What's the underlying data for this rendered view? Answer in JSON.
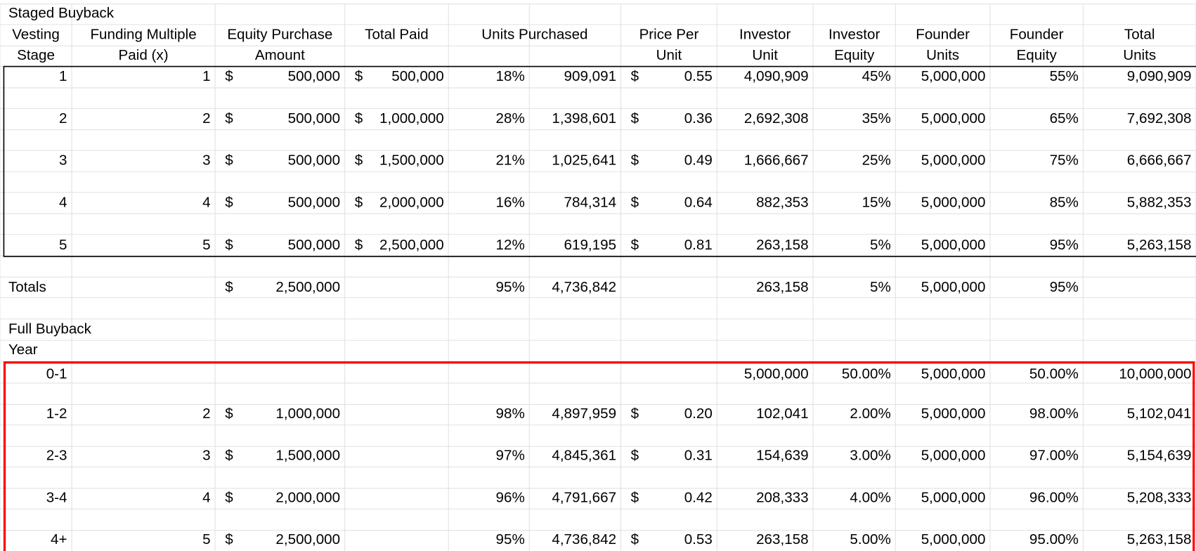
{
  "staged": {
    "title": "Staged Buyback",
    "headers": [
      {
        "top": "Vesting",
        "bottom": "Stage"
      },
      {
        "top": "Funding Multiple",
        "bottom": "Paid (x)"
      },
      {
        "top": "Equity Purchase",
        "bottom": "Amount"
      },
      {
        "top": "Total Paid"
      },
      {
        "top": "Units Purchased"
      },
      {
        "top": "Price Per",
        "bottom": "Unit"
      },
      {
        "top": "Investor",
        "bottom": "Unit"
      },
      {
        "top": "Investor",
        "bottom": "Equity"
      },
      {
        "top": "Founder",
        "bottom": "Units"
      },
      {
        "top": "Founder",
        "bottom": "Equity"
      },
      {
        "top": "Total",
        "bottom": "Units",
        "top_color": "#ff0000"
      }
    ],
    "rows": [
      {
        "stage": "1",
        "multiple": "1",
        "amount_symbol": "$",
        "amount": "500,000",
        "total_symbol": "$",
        "total": "500,000",
        "pct": "18%",
        "units": "909,091",
        "price_symbol": "$",
        "price": "0.55",
        "investor_units": "4,090,909",
        "investor_equity": "45%",
        "founder_units": "5,000,000",
        "founder_equity": "55%",
        "total_units": "9,090,909"
      },
      {
        "stage": "2",
        "multiple": "2",
        "amount_symbol": "$",
        "amount": "500,000",
        "total_symbol": "$",
        "total": "1,000,000",
        "pct": "28%",
        "units": "1,398,601",
        "price_symbol": "$",
        "price": "0.36",
        "investor_units": "2,692,308",
        "investor_equity": "35%",
        "founder_units": "5,000,000",
        "founder_equity": "65%",
        "total_units": "7,692,308"
      },
      {
        "stage": "3",
        "multiple": "3",
        "amount_symbol": "$",
        "amount": "500,000",
        "total_symbol": "$",
        "total": "1,500,000",
        "pct": "21%",
        "units": "1,025,641",
        "price_symbol": "$",
        "price": "0.49",
        "investor_units": "1,666,667",
        "investor_equity": "25%",
        "founder_units": "5,000,000",
        "founder_equity": "75%",
        "total_units": "6,666,667"
      },
      {
        "stage": "4",
        "multiple": "4",
        "amount_symbol": "$",
        "amount": "500,000",
        "total_symbol": "$",
        "total": "2,000,000",
        "pct": "16%",
        "units": "784,314",
        "price_symbol": "$",
        "price": "0.64",
        "investor_units": "882,353",
        "investor_equity": "15%",
        "founder_units": "5,000,000",
        "founder_equity": "85%",
        "total_units": "5,882,353"
      },
      {
        "stage": "5",
        "multiple": "5",
        "amount_symbol": "$",
        "amount": "500,000",
        "total_symbol": "$",
        "total": "2,500,000",
        "pct": "12%",
        "units": "619,195",
        "price_symbol": "$",
        "price": "0.81",
        "investor_units": "263,158",
        "investor_equity": "5%",
        "founder_units": "5,000,000",
        "founder_equity": "95%",
        "total_units": "5,263,158"
      }
    ],
    "totals": {
      "label": "Totals",
      "amount_symbol": "$",
      "amount": "2,500,000",
      "pct": "95%",
      "units": "4,736,842",
      "investor_units": "263,158",
      "investor_equity": "5%",
      "founder_units": "5,000,000",
      "founder_equity": "95%",
      "color": "#ff0000"
    }
  },
  "full": {
    "title": "Full Buyback",
    "header": "Year",
    "rows": [
      {
        "stage": "0-1",
        "investor_units": "5,000,000",
        "investor_equity": "50.00%",
        "founder_units": "5,000,000",
        "founder_equity": "50.00%",
        "total_units": "10,000,000"
      },
      {
        "stage": "1-2",
        "multiple": "2",
        "amount_symbol": "$",
        "amount": "1,000,000",
        "pct": "98%",
        "units": "4,897,959",
        "price_symbol": "$",
        "price": "0.20",
        "investor_units": "102,041",
        "investor_equity": "2.00%",
        "founder_units": "5,000,000",
        "founder_equity": "98.00%",
        "total_units": "5,102,041"
      },
      {
        "stage": "2-3",
        "multiple": "3",
        "amount_symbol": "$",
        "amount": "1,500,000",
        "pct": "97%",
        "units": "4,845,361",
        "price_symbol": "$",
        "price": "0.31",
        "investor_units": "154,639",
        "investor_equity": "3.00%",
        "founder_units": "5,000,000",
        "founder_equity": "97.00%",
        "total_units": "5,154,639"
      },
      {
        "stage": "3-4",
        "multiple": "4",
        "amount_symbol": "$",
        "amount": "2,000,000",
        "pct": "96%",
        "units": "4,791,667",
        "price_symbol": "$",
        "price": "0.42",
        "investor_units": "208,333",
        "investor_equity": "4.00%",
        "founder_units": "5,000,000",
        "founder_equity": "96.00%",
        "total_units": "5,208,333"
      },
      {
        "stage": "4+",
        "multiple": "5",
        "amount_symbol": "$",
        "amount": "2,500,000",
        "pct": "95%",
        "units": "4,736,842",
        "price_symbol": "$",
        "price": "0.53",
        "investor_units": "263,158",
        "investor_equity": "5.00%",
        "founder_units": "5,000,000",
        "founder_equity": "95.00%",
        "total_units": "5,263,158"
      }
    ]
  }
}
